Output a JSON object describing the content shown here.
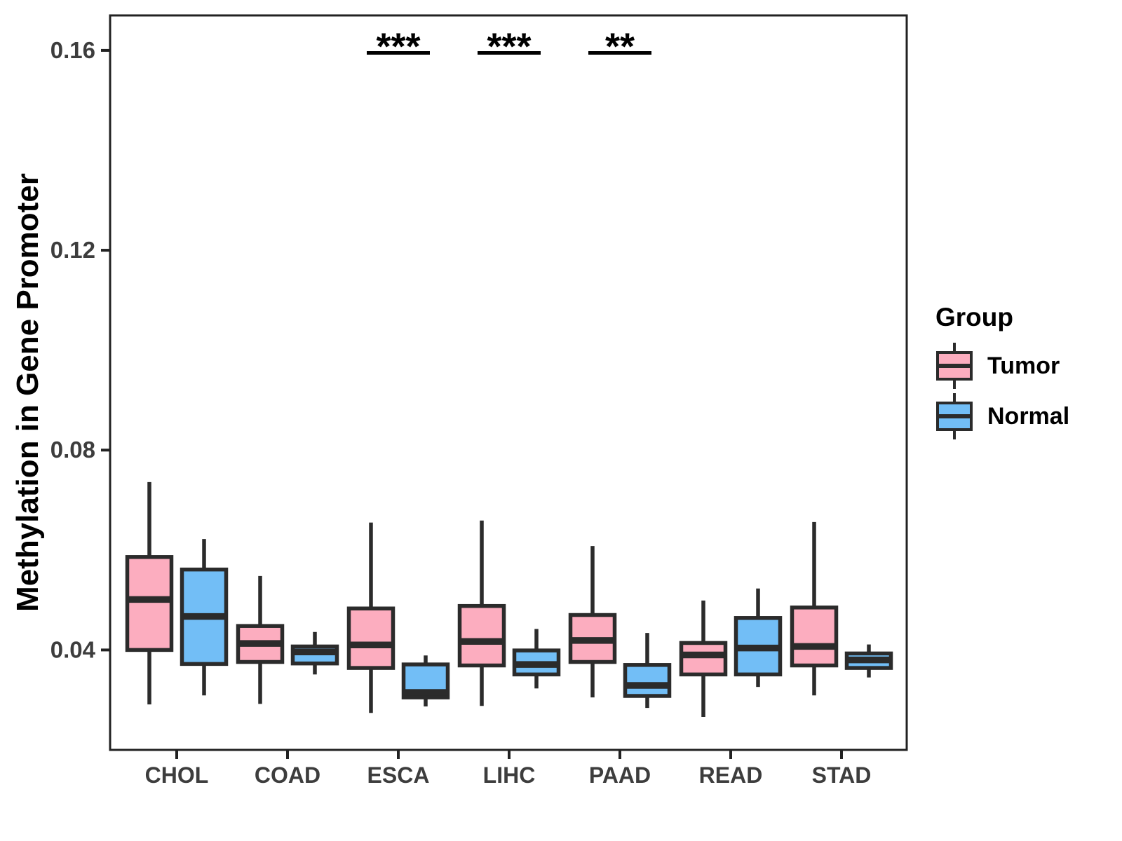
{
  "figure": {
    "background": "#FFFFFF",
    "y_axis_title": "Methylation in Gene Promoter",
    "legend": {
      "title": "Group",
      "items": [
        {
          "label": "Tumor",
          "color": "#FCADBF"
        },
        {
          "label": "Normal",
          "color": "#72BEF6"
        }
      ]
    },
    "colors": {
      "box_stroke": "#2B2B2B",
      "panel_border": "#222222",
      "axis_text": "#3D3D3D",
      "annotation": "#000000"
    }
  },
  "chart_data": {
    "type": "boxplot",
    "title": "",
    "xlabel": "",
    "ylabel": "Methylation in Gene Promoter",
    "ylim": [
      0.02,
      0.167
    ],
    "y_ticks": [
      0.04,
      0.08,
      0.12,
      0.16
    ],
    "y_tick_labels": [
      "0.04",
      "0.08",
      "0.12",
      "0.16"
    ],
    "categories": [
      "CHOL",
      "COAD",
      "ESCA",
      "LIHC",
      "PAAD",
      "READ",
      "STAD"
    ],
    "grid": false,
    "legend_position": "right",
    "series": [
      {
        "name": "Tumor",
        "color": "#FCADBF",
        "boxes": [
          {
            "category": "CHOL",
            "whisker_low": 0.0291,
            "q1": 0.04,
            "median": 0.0501,
            "q3": 0.0586,
            "whisker_high": 0.0736
          },
          {
            "category": "COAD",
            "whisker_low": 0.0292,
            "q1": 0.0376,
            "median": 0.0413,
            "q3": 0.0448,
            "whisker_high": 0.0548
          },
          {
            "category": "ESCA",
            "whisker_low": 0.0274,
            "q1": 0.0364,
            "median": 0.041,
            "q3": 0.0483,
            "whisker_high": 0.0655
          },
          {
            "category": "LIHC",
            "whisker_low": 0.0288,
            "q1": 0.0369,
            "median": 0.0417,
            "q3": 0.0488,
            "whisker_high": 0.0659
          },
          {
            "category": "PAAD",
            "whisker_low": 0.0305,
            "q1": 0.0376,
            "median": 0.0419,
            "q3": 0.047,
            "whisker_high": 0.0608
          },
          {
            "category": "READ",
            "whisker_low": 0.0266,
            "q1": 0.0351,
            "median": 0.039,
            "q3": 0.0414,
            "whisker_high": 0.0499
          },
          {
            "category": "STAD",
            "whisker_low": 0.0309,
            "q1": 0.0369,
            "median": 0.0407,
            "q3": 0.0485,
            "whisker_high": 0.0656
          }
        ]
      },
      {
        "name": "Normal",
        "color": "#72BEF6",
        "boxes": [
          {
            "category": "CHOL",
            "whisker_low": 0.0309,
            "q1": 0.0372,
            "median": 0.0467,
            "q3": 0.0561,
            "whisker_high": 0.0622
          },
          {
            "category": "COAD",
            "whisker_low": 0.0351,
            "q1": 0.0373,
            "median": 0.0396,
            "q3": 0.0407,
            "whisker_high": 0.0436
          },
          {
            "category": "ESCA",
            "whisker_low": 0.0287,
            "q1": 0.0305,
            "median": 0.0315,
            "q3": 0.0371,
            "whisker_high": 0.0389
          },
          {
            "category": "LIHC",
            "whisker_low": 0.0323,
            "q1": 0.0351,
            "median": 0.0371,
            "q3": 0.0399,
            "whisker_high": 0.0442
          },
          {
            "category": "PAAD",
            "whisker_low": 0.0284,
            "q1": 0.0308,
            "median": 0.0329,
            "q3": 0.037,
            "whisker_high": 0.0434
          },
          {
            "category": "READ",
            "whisker_low": 0.0326,
            "q1": 0.0351,
            "median": 0.0404,
            "q3": 0.0464,
            "whisker_high": 0.0523
          },
          {
            "category": "STAD",
            "whisker_low": 0.0345,
            "q1": 0.0364,
            "median": 0.038,
            "q3": 0.0393,
            "whisker_high": 0.0411
          }
        ]
      }
    ],
    "annotations": [
      {
        "category": "ESCA",
        "label": "***",
        "y": 0.1595
      },
      {
        "category": "LIHC",
        "label": "***",
        "y": 0.1595
      },
      {
        "category": "PAAD",
        "label": "**",
        "y": 0.1595
      }
    ]
  }
}
